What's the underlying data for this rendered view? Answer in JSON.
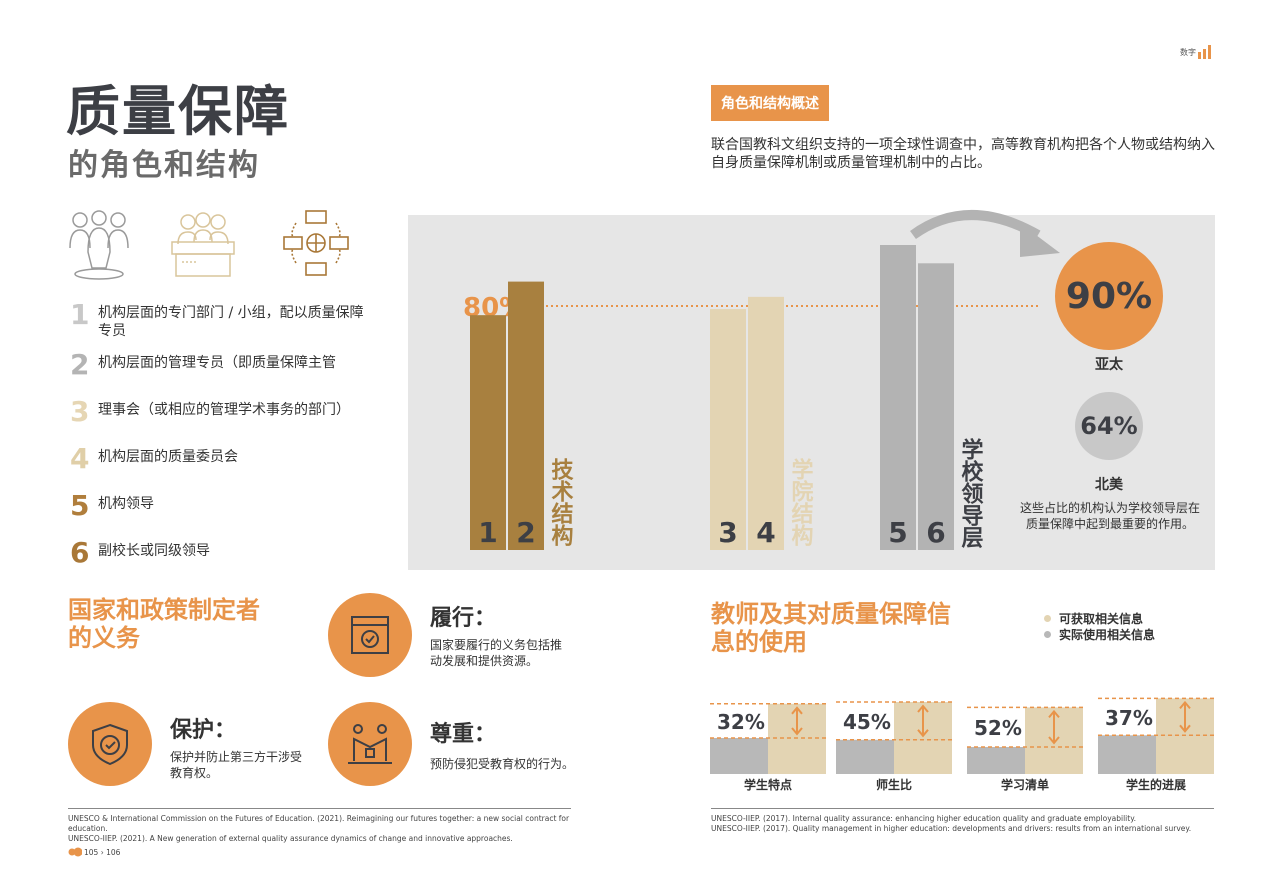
{
  "header": {
    "category": "数字"
  },
  "title": {
    "line1": "质量保障",
    "line2": "的角色和结构"
  },
  "icons": [
    "people-icon",
    "committee-icon",
    "network-icon"
  ],
  "roles": [
    {
      "num": "1",
      "text": "机构层面的专门部门 / 小组，配以质量保障专员",
      "color": "#c8c8c8"
    },
    {
      "num": "2",
      "text": "机构层面的管理专员（即质量保障主管",
      "color": "#b4b4b4"
    },
    {
      "num": "3",
      "text": "理事会（或相应的管理学术事务的部门）",
      "color": "#e6d6b4"
    },
    {
      "num": "4",
      "text": "机构层面的质量委员会",
      "color": "#e0cfa8"
    },
    {
      "num": "5",
      "text": "机构领导",
      "color": "#b07e3c"
    },
    {
      "num": "6",
      "text": "副校长或同级领导",
      "color": "#a97838"
    }
  ],
  "overview": {
    "tag": "角色和结构概述",
    "intro": "联合国教科文组织支持的一项全球性调查中，高等教育机构把各个人物或结构纳入自身质量保障机制或质量管理机制中的占比。"
  },
  "chart_data": {
    "type": "bar",
    "reference_line": {
      "value": 80,
      "label": "80%"
    },
    "groups": [
      {
        "name": "技术结构",
        "bars": [
          {
            "label": "1",
            "value": 77
          },
          {
            "label": "2",
            "value": 88
          }
        ],
        "color": "#a8803f"
      },
      {
        "name": "学院结构",
        "bars": [
          {
            "label": "3",
            "value": 79
          },
          {
            "label": "4",
            "value": 83
          }
        ],
        "color": "#e3d4b3"
      },
      {
        "name": "学校领导层",
        "bars": [
          {
            "label": "5",
            "value": 100
          },
          {
            "label": "6",
            "value": 94
          }
        ],
        "color": "#b3b3b3"
      }
    ],
    "callouts": [
      {
        "value": "90%",
        "region": "亚太",
        "color": "#e8944a"
      },
      {
        "value": "64%",
        "region": "北美",
        "color": "#c8c8c8"
      }
    ],
    "note": "这些占比的机构认为学校领导层在质量保障中起到最重要的作用。"
  },
  "state_duties": {
    "title": "国家和政策制定者的义务",
    "items": [
      {
        "icon": "document-check-icon",
        "title": "履行：",
        "text": "国家要履行的义务包括推动发展和提供资源。"
      },
      {
        "icon": "shield-check-icon",
        "title": "保护：",
        "text": "保护并防止第三方干涉受教育权。"
      },
      {
        "icon": "handshake-icon",
        "title": "尊重：",
        "text": "预防侵犯受教育权的行为。"
      }
    ]
  },
  "teachers": {
    "title": "教师及其对质量保障信息的使用",
    "legend": [
      {
        "label": "可获取相关信息",
        "color": "#e3d4b3"
      },
      {
        "label": "实际使用相关信息",
        "color": "#b8b8b8"
      }
    ],
    "items": [
      {
        "pct": "32%",
        "label": "学生特点",
        "available": 78,
        "used": 40
      },
      {
        "pct": "45%",
        "label": "师生比",
        "available": 80,
        "used": 38
      },
      {
        "pct": "52%",
        "label": "学习清单",
        "available": 74,
        "used": 30
      },
      {
        "pct": "37%",
        "label": "学生的进展",
        "available": 84,
        "used": 43
      }
    ]
  },
  "references_left": [
    "UNESCO & International Commission on the Futures of Education. (2021). Reimagining our futures together: a new social contract for education.",
    "UNESCO-IIEP. (2021). A New generation of external quality assurance dynamics of change and innovative approaches."
  ],
  "references_right": [
    "UNESCO-IIEP. (2017). Internal quality assurance: enhancing higher education quality and graduate employability.",
    "UNESCO-IIEP. (2017). Quality management in higher education: developments and drivers: results from an international survey."
  ],
  "footer": {
    "pages": "105 › 106"
  }
}
